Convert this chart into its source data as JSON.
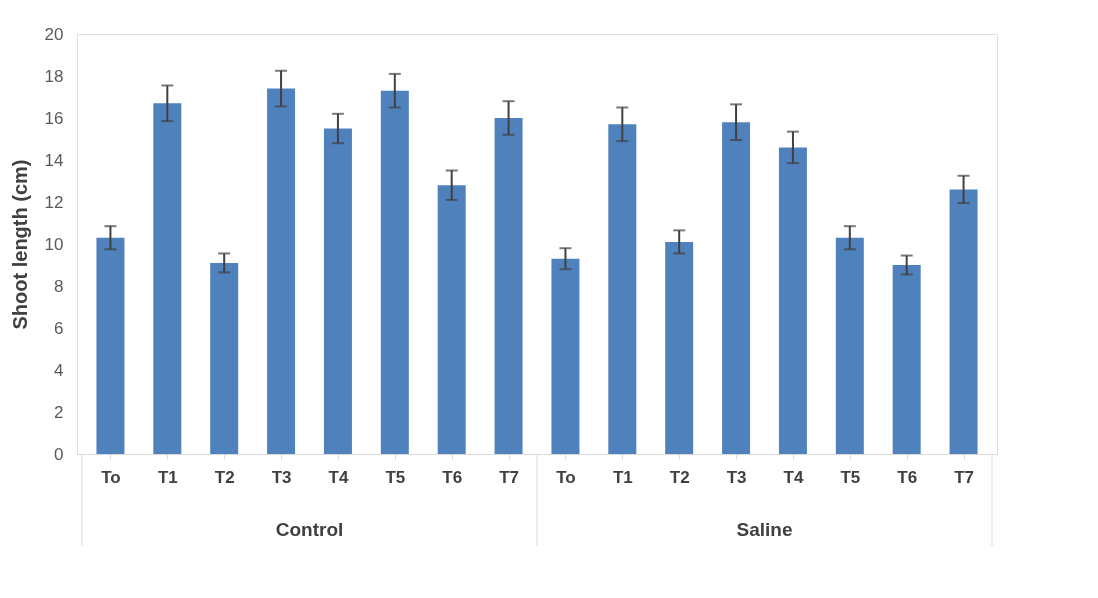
{
  "chart_data": {
    "type": "bar",
    "ylabel": "Shoot length (cm)",
    "categories": [
      "To",
      "T1",
      "T2",
      "T3",
      "T4",
      "T5",
      "T6",
      "T7",
      "To",
      "T1",
      "T2",
      "T3",
      "T4",
      "T5",
      "T6",
      "T7"
    ],
    "series": [
      {
        "color": "#4f81bd",
        "values": [
          10.3,
          16.7,
          9.1,
          17.4,
          15.5,
          17.3,
          12.8,
          16.0,
          9.3,
          15.7,
          10.1,
          15.8,
          14.6,
          10.3,
          9.0,
          12.6
        ],
        "errors": [
          0.55,
          0.85,
          0.45,
          0.85,
          0.7,
          0.8,
          0.7,
          0.8,
          0.5,
          0.8,
          0.55,
          0.85,
          0.75,
          0.55,
          0.45,
          0.65
        ]
      }
    ],
    "annotations": [
      "Control",
      "Saline"
    ],
    "ylim": [
      0,
      20
    ],
    "yticks": [
      0,
      2,
      4,
      6,
      8,
      10,
      12,
      14,
      16,
      18,
      20
    ],
    "grid": false
  }
}
